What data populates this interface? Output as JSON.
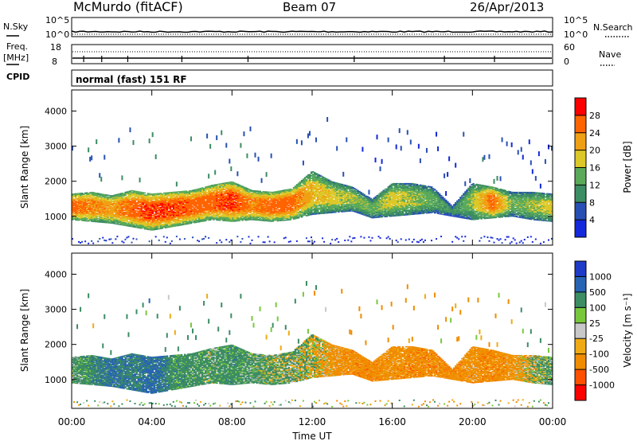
{
  "header": {
    "station": "McMurdo (fitACF)",
    "beam": "Beam 07",
    "date": "26/Apr/2013",
    "mode": "normal (fast) 151 RF"
  },
  "strip_labels": {
    "nsky": "N.Sky",
    "nsearch": "N.Search",
    "freq": "Freq.",
    "mhz": "[MHz]",
    "cpid": "CPID",
    "nave": "Nave",
    "noise_top": "10^5",
    "noise_bottom": "10^0",
    "freq_top": "18",
    "freq_bottom": "8",
    "nave_top": "60",
    "nave_bottom": "0"
  },
  "colors": {
    "power_scale": [
      "#1428dc",
      "#2850b4",
      "#3c8c64",
      "#5aaa5a",
      "#dcc828",
      "#f0a014",
      "#ff6400",
      "#ff0000"
    ],
    "velocity_scale": [
      "#1e3cc8",
      "#2864b4",
      "#3c8c64",
      "#78c83c",
      "#c8c8c8",
      "#f0aa14",
      "#f08c00",
      "#ff5000",
      "#ff0000"
    ]
  },
  "chart_data": [
    {
      "type": "heatmap",
      "panel": "power",
      "ylabel": "Slant Range [km]",
      "ylim": [
        180,
        4600
      ],
      "yticks": [
        "1000",
        "2000",
        "3000",
        "4000"
      ],
      "xticks": [
        "00:00",
        "04:00",
        "08:00",
        "12:00",
        "16:00",
        "20:00",
        "00:00"
      ],
      "colorbar_label": "Power [dB]",
      "colorbar_ticks": [
        "4",
        "8",
        "12",
        "16",
        "20",
        "24",
        "28"
      ],
      "echo_region": {
        "time_h": [
          0.0,
          1.0,
          2.0,
          3.0,
          4.0,
          5.0,
          6.0,
          7.0,
          8.0,
          9.0,
          10.0,
          11.0,
          12.0,
          13.0,
          14.0,
          15.0,
          16.0,
          17.0,
          18.0,
          19.0,
          20.0,
          21.0,
          22.0,
          23.0,
          24.0
        ],
        "low_km": [
          900,
          850,
          800,
          700,
          600,
          700,
          800,
          900,
          850,
          900,
          850,
          900,
          1050,
          1100,
          1150,
          950,
          1000,
          1050,
          1100,
          1000,
          900,
          950,
          1000,
          900,
          850
        ],
        "high_km": [
          1650,
          1700,
          1600,
          1750,
          1650,
          1700,
          1750,
          1900,
          2000,
          1750,
          1700,
          1800,
          2300,
          2000,
          1850,
          1500,
          1950,
          1950,
          1850,
          1300,
          1950,
          1850,
          1700,
          1700,
          1650
        ],
        "power_db": [
          26,
          24,
          22,
          26,
          28,
          28,
          26,
          26,
          28,
          24,
          26,
          26,
          20,
          18,
          16,
          14,
          18,
          16,
          14,
          10,
          16,
          26,
          14,
          16,
          18
        ]
      }
    },
    {
      "type": "heatmap",
      "panel": "velocity",
      "ylabel": "Slant Range [km]",
      "ylim": [
        180,
        4600
      ],
      "yticks": [
        "1000",
        "2000",
        "3000",
        "4000"
      ],
      "xticks": [
        "00:00",
        "04:00",
        "08:00",
        "12:00",
        "16:00",
        "20:00",
        "00:00"
      ],
      "xlabel": "Time UT",
      "colorbar_label": "Velocity [m s⁻¹]",
      "colorbar_ticks": [
        "1000",
        "500",
        "100",
        "25",
        "-25",
        "-100",
        "-500",
        "-1000"
      ],
      "echo_region": {
        "time_h": [
          0.0,
          1.0,
          2.0,
          3.0,
          4.0,
          5.0,
          6.0,
          7.0,
          8.0,
          9.0,
          10.0,
          11.0,
          12.0,
          13.0,
          14.0,
          15.0,
          16.0,
          17.0,
          18.0,
          19.0,
          20.0,
          21.0,
          22.0,
          23.0,
          24.0
        ],
        "low_km": [
          900,
          850,
          800,
          700,
          600,
          700,
          800,
          900,
          850,
          900,
          850,
          900,
          1050,
          1100,
          1150,
          950,
          1000,
          1050,
          1100,
          1000,
          900,
          950,
          1000,
          900,
          850
        ],
        "high_km": [
          1650,
          1700,
          1600,
          1750,
          1650,
          1700,
          1750,
          1900,
          2000,
          1750,
          1700,
          1800,
          2300,
          2000,
          1850,
          1500,
          1950,
          1950,
          1850,
          1300,
          1950,
          1850,
          1700,
          1700,
          1650
        ],
        "velocity_ms": [
          200,
          300,
          600,
          400,
          700,
          300,
          250,
          200,
          300,
          200,
          150,
          100,
          0,
          -200,
          -300,
          -300,
          -250,
          -300,
          -300,
          -300,
          -250,
          -300,
          -250,
          50,
          200
        ]
      }
    }
  ]
}
